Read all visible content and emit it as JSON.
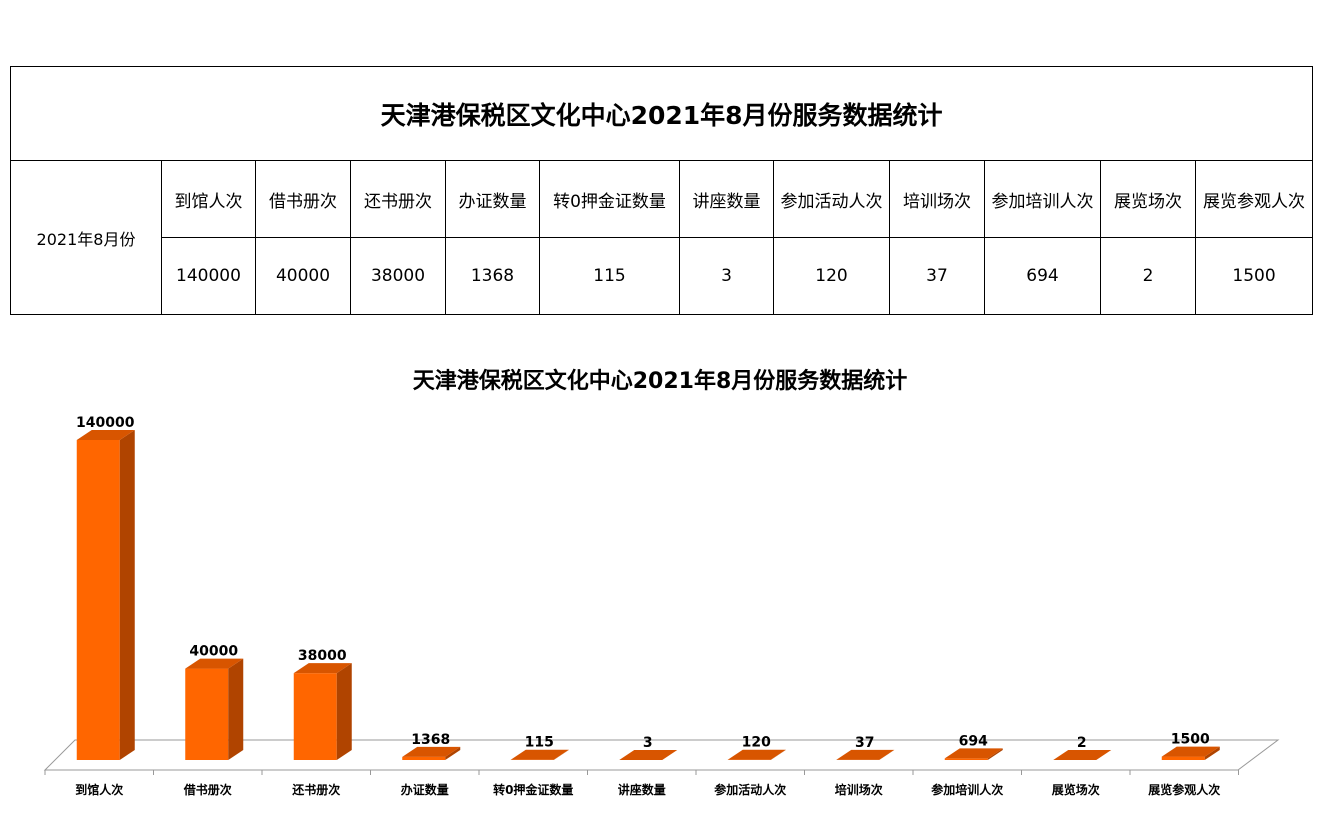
{
  "table": {
    "title": "天津港保税区文化中心2021年8月份服务数据统计",
    "period": "2021年8月份",
    "headers": [
      "到馆人次",
      "借书册次",
      "还书册次",
      "办证数量",
      "转0押金证数量",
      "讲座数量",
      "参加活动人次",
      "培训场次",
      "参加培训人次",
      "展览场次",
      "展览参观人次"
    ],
    "values": [
      "140000",
      "40000",
      "38000",
      "1368",
      "115",
      "3",
      "120",
      "37",
      "694",
      "2",
      "1500"
    ]
  },
  "chart_data": {
    "type": "bar",
    "title": "天津港保税区文化中心2021年8月份服务数据统计",
    "categories": [
      "到馆人次",
      "借书册次",
      "还书册次",
      "办证数量",
      "转0押金证数量",
      "讲座数量",
      "参加活动人次",
      "培训场次",
      "参加培训人次",
      "展览场次",
      "展览参观人次"
    ],
    "values": [
      140000,
      40000,
      38000,
      1368,
      115,
      3,
      120,
      37,
      694,
      2,
      1500
    ],
    "xlabel": "",
    "ylabel": "",
    "ylim": [
      0,
      140000
    ],
    "grid": false,
    "legend": "none",
    "bar_color": "#FF6600",
    "bar_side_color": "#B04400",
    "bar_top_color": "#D85500"
  }
}
